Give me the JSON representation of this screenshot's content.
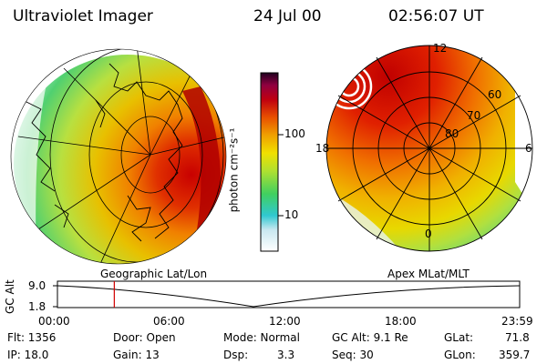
{
  "header": {
    "title": "Ultraviolet Imager",
    "date": "24 Jul 00",
    "time": "02:56:07 UT"
  },
  "colorbar": {
    "unit_label": "photon cm⁻²s⁻¹",
    "tick_100": "100",
    "tick_10": "10"
  },
  "left_map": {
    "caption": "Geographic Lat/Lon"
  },
  "right_map": {
    "caption": "Apex MLat/MLT",
    "mlt_12": "12",
    "mlt_18": "18",
    "mlt_6": "6",
    "mlt_0": "0",
    "lat_60": "60",
    "lat_70": "70",
    "lat_80": "80"
  },
  "timeline": {
    "ylabel": "GC Alt",
    "y_top": "9.0",
    "y_bottom": "1.8",
    "ticks": [
      "00:00",
      "06:00",
      "12:00",
      "18:00",
      "23:59"
    ],
    "current_time_fraction": 0.123
  },
  "info": {
    "flt": "Flt: 1356",
    "ip": "IP: 18.0",
    "door": "Door: Open",
    "gain": "Gain: 13",
    "mode": "Mode: Normal",
    "dsp_label": "Dsp:",
    "dsp_value": "3.3",
    "gc_alt": "GC Alt: 9.1 Re",
    "seq": "Seq: 30",
    "glat_label": "GLat:",
    "glat_value": "71.8",
    "glon_label": "GLon:",
    "glon_value": "359.7"
  }
}
